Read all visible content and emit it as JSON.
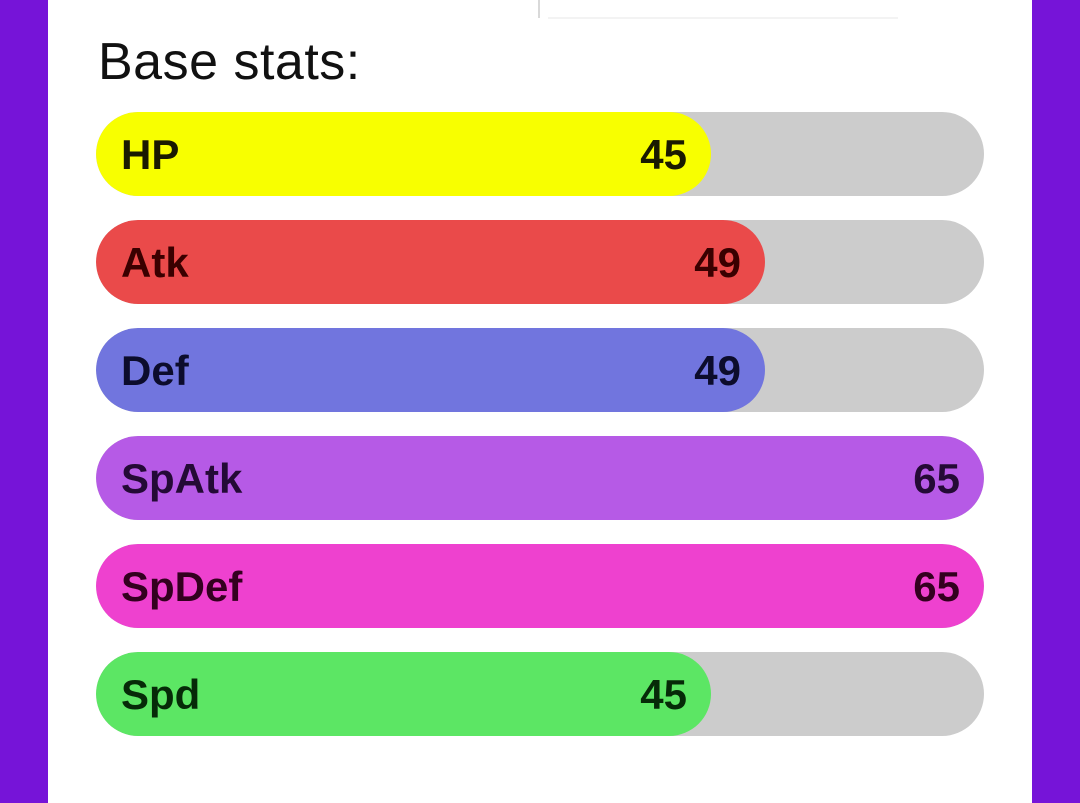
{
  "section": {
    "title": "Base stats:"
  },
  "stat_max": 65,
  "stats": [
    {
      "label": "HP",
      "value": 45,
      "color": "#f8ff00",
      "text_color": "#1a1a00"
    },
    {
      "label": "Atk",
      "value": 49,
      "color": "#ea4a4a",
      "text_color": "#3a0000"
    },
    {
      "label": "Def",
      "value": 49,
      "color": "#7175de",
      "text_color": "#0c0c2c"
    },
    {
      "label": "SpAtk",
      "value": 65,
      "color": "#b65ae6",
      "text_color": "#240a36"
    },
    {
      "label": "SpDef",
      "value": 65,
      "color": "#ee41cf",
      "text_color": "#33001f"
    },
    {
      "label": "Spd",
      "value": 45,
      "color": "#5ce664",
      "text_color": "#062a08"
    }
  ]
}
